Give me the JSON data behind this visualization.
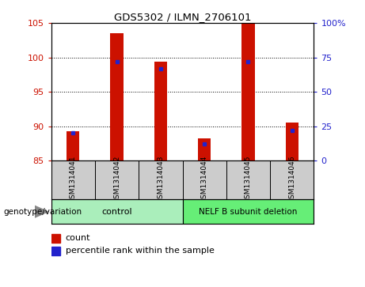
{
  "title": "GDS5302 / ILMN_2706101",
  "samples": [
    "GSM1314041",
    "GSM1314042",
    "GSM1314043",
    "GSM1314044",
    "GSM1314045",
    "GSM1314046"
  ],
  "counts": [
    89.3,
    103.5,
    99.4,
    88.2,
    105.0,
    90.5
  ],
  "percentiles": [
    20,
    72,
    67,
    12,
    72,
    22
  ],
  "ylim_left": [
    85,
    105
  ],
  "ylim_right": [
    0,
    100
  ],
  "yticks_left": [
    85,
    90,
    95,
    100,
    105
  ],
  "yticks_right": [
    0,
    25,
    50,
    75,
    100
  ],
  "ytick_labels_right": [
    "0",
    "25",
    "50",
    "75",
    "100%"
  ],
  "bar_color": "#cc1100",
  "percentile_color": "#2222cc",
  "plot_bg_color": "#ffffff",
  "label_area_color": "#cccccc",
  "control_color": "#aaeebb",
  "nelf_color": "#66ee77",
  "genotype_label": "genotype/variation",
  "legend_count": "count",
  "legend_percentile": "percentile rank within the sample",
  "bar_width": 0.3
}
